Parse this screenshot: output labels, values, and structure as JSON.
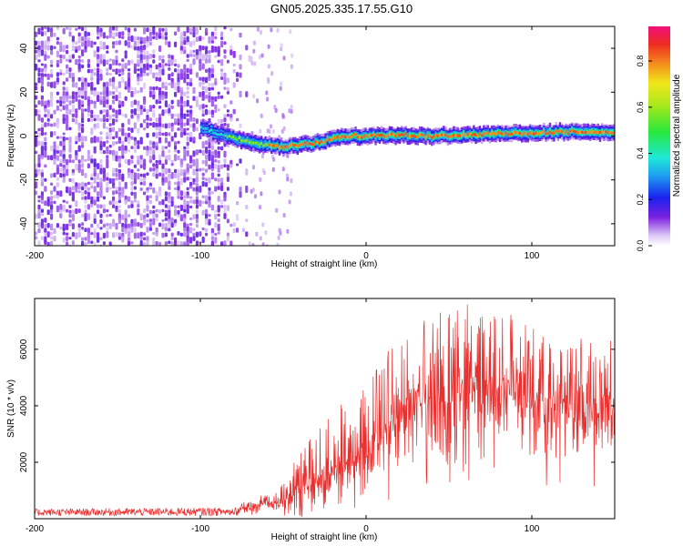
{
  "title": "GN05.2025.335.17.55.G10",
  "colors": {
    "spec_low": "#c9a6f0",
    "spec_mid": "#7a1fe0",
    "ridge_hi": "#e8212b",
    "snr_line": "#e8302f"
  },
  "chart_data": [
    {
      "type": "heatmap",
      "title": "GN05.2025.335.17.55.G10",
      "xlabel": "Height of straight line (km)",
      "ylabel": "Frequency (Hz)",
      "xlim": [
        -200,
        150
      ],
      "ylim": [
        -50,
        50
      ],
      "xticks": [
        "-200",
        "-100",
        "0",
        "100"
      ],
      "xtick_values": [
        -200,
        -100,
        0,
        100
      ],
      "yticks": [
        "-40",
        "-20",
        "0",
        "20",
        "40"
      ],
      "ytick_values": [
        -40,
        -20,
        0,
        20,
        40
      ],
      "noise_region_x": [
        -200,
        -70
      ],
      "ridge": {
        "x": [
          -100,
          -90,
          -80,
          -70,
          -60,
          -50,
          -40,
          -30,
          -20,
          -10,
          0,
          20,
          40,
          60,
          80,
          100,
          120,
          150
        ],
        "freq": [
          4,
          1,
          -1,
          -3,
          -4,
          -5,
          -4,
          -3,
          -1,
          0,
          0,
          0.5,
          0,
          0.5,
          1,
          1.5,
          2,
          2
        ]
      },
      "colorbar": {
        "label": "Normalized spectral amplitude",
        "range": [
          0,
          0.95
        ],
        "ticks": [
          "0.0",
          "0.2",
          "0.4",
          "0.6",
          "0.8"
        ],
        "tick_values": [
          0,
          0.2,
          0.4,
          0.6,
          0.8
        ]
      }
    },
    {
      "type": "line",
      "xlabel": "Height of straight line (km)",
      "ylabel": "SNR (10 * v/v)",
      "xlim": [
        -200,
        150
      ],
      "ylim": [
        0,
        7800
      ],
      "xticks": [
        "-200",
        "-100",
        "0",
        "100"
      ],
      "xtick_values": [
        -200,
        -100,
        0,
        100
      ],
      "yticks": [
        "2000",
        "4000",
        "6000"
      ],
      "ytick_values": [
        2000,
        4000,
        6000
      ],
      "series": [
        {
          "name": "SNR",
          "envelope_x": [
            -200,
            -80,
            -70,
            -60,
            -50,
            -40,
            -30,
            -20,
            -10,
            0,
            10,
            20,
            30,
            40,
            60,
            80,
            100,
            120,
            150
          ],
          "envelope_min": [
            100,
            100,
            200,
            200,
            100,
            100,
            200,
            300,
            500,
            700,
            1200,
            1500,
            1800,
            2000,
            2200,
            2200,
            2100,
            2100,
            2200
          ],
          "envelope_max": [
            350,
            400,
            700,
            1000,
            1200,
            2500,
            3000,
            3800,
            4300,
            4700,
            5800,
            6500,
            7000,
            7600,
            7500,
            7400,
            6800,
            6300,
            6200
          ]
        }
      ]
    }
  ]
}
